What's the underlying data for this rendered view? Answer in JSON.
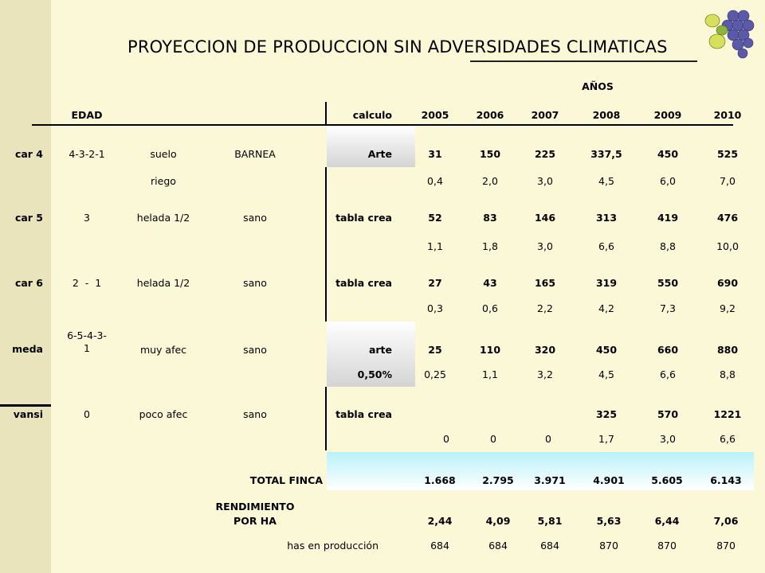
{
  "title": "PROYECCION DE PRODUCCION SIN ADVERSIDADES CLIMATICAS",
  "anios_label": "AÑOS",
  "header": {
    "edad": "EDAD",
    "calculo": "calculo",
    "years": [
      "2005",
      "2006",
      "2007",
      "2008",
      "2009",
      "2010"
    ]
  },
  "rows": [
    {
      "id": "car4",
      "cuartel": "car 4",
      "edad": "4-3-2-1",
      "c3": "suelo",
      "c4": "BARNEA",
      "calc": "Arte",
      "vals": [
        "31",
        "150",
        "225",
        "337,5",
        "450",
        "525"
      ]
    },
    {
      "id": "car4-sub",
      "c3": "riego",
      "vals": [
        "0,4",
        "2,0",
        "3,0",
        "4,5",
        "6,0",
        "7,0"
      ]
    },
    {
      "id": "car5",
      "cuartel": "car 5",
      "edad": "3",
      "c3": "helada 1/2",
      "c4": "sano",
      "calc": "tabla crea",
      "vals": [
        "52",
        "83",
        "146",
        "313",
        "419",
        "476"
      ]
    },
    {
      "id": "car5-sub",
      "vals": [
        "1,1",
        "1,8",
        "3,0",
        "6,6",
        "8,8",
        "10,0"
      ]
    },
    {
      "id": "car6",
      "cuartel": "car 6",
      "edad": "2  -  1",
      "c3": "helada 1/2",
      "c4": "sano",
      "calc": "tabla crea",
      "vals": [
        "27",
        "43",
        "165",
        "319",
        "550",
        "690"
      ]
    },
    {
      "id": "car6-sub",
      "vals": [
        "0,3",
        "0,6",
        "2,2",
        "4,2",
        "7,3",
        "9,2"
      ]
    },
    {
      "id": "meda",
      "cuartel": "meda",
      "edad_line1": "6-5-4-3-",
      "edad_line2": "1",
      "c3": "muy afec",
      "c4": "sano",
      "calc": "arte",
      "vals": [
        "25",
        "110",
        "320",
        "450",
        "660",
        "880"
      ]
    },
    {
      "id": "meda-sub",
      "calc": "0,50%",
      "vals": [
        "0,25",
        "1,1",
        "3,2",
        "4,5",
        "6,6",
        "8,8"
      ]
    },
    {
      "id": "vansi",
      "cuartel": "vansi",
      "edad": "0",
      "c3": "poco afec",
      "c4": "sano",
      "calc": "tabla crea",
      "vals": [
        "",
        "",
        "",
        "325",
        "570",
        "1221"
      ]
    },
    {
      "id": "vansi-sub",
      "vals": [
        "0",
        "0",
        "0",
        "1,7",
        "3,0",
        "6,6"
      ]
    }
  ],
  "total": {
    "label": "TOTAL FINCA",
    "vals": [
      "1.668",
      "2.795",
      "3.971",
      "4.901",
      "5.605",
      "6.143"
    ]
  },
  "rendimiento": {
    "label_line1": "RENDIMIENTO",
    "label_line2": "POR HA",
    "vals": [
      "2,44",
      "4,09",
      "5,81",
      "5,63",
      "6,44",
      "7,06"
    ]
  },
  "has": {
    "label": "has en producción",
    "vals": [
      "684",
      "684",
      "684",
      "870",
      "870",
      "870"
    ]
  }
}
